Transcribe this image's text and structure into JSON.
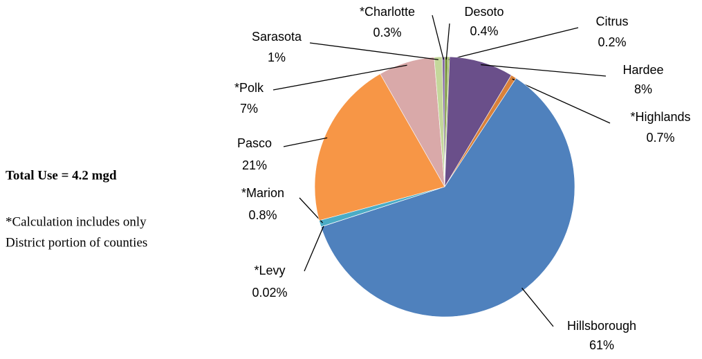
{
  "chart_data": {
    "type": "pie",
    "categories": [
      "Desoto",
      "Citrus",
      "Hardee",
      "*Highlands",
      "Hillsborough",
      "*Levy",
      "*Marion",
      "Pasco",
      "*Polk",
      "Sarasota",
      "*Charlotte"
    ],
    "values": [
      0.4,
      0.2,
      8,
      0.7,
      61,
      0.02,
      0.8,
      21,
      7,
      1,
      0.3
    ],
    "value_labels": [
      "0.4%",
      "0.2%",
      "8%",
      "0.7%",
      "61%",
      "0.02%",
      "0.8%",
      "21%",
      "7%",
      "1%",
      "0.3%"
    ],
    "colors": [
      "#77933c",
      "#9bbb59",
      "#6a4f8a",
      "#d9813a",
      "#4f81bd",
      "#2c8ca8",
      "#4bacc6",
      "#f79646",
      "#d9a9a9",
      "#c4d79b",
      "#8064a2"
    ],
    "annotations": [
      "Total Use = 4.2 mgd",
      "*Calculation includes only",
      "District portion of counties"
    ]
  }
}
